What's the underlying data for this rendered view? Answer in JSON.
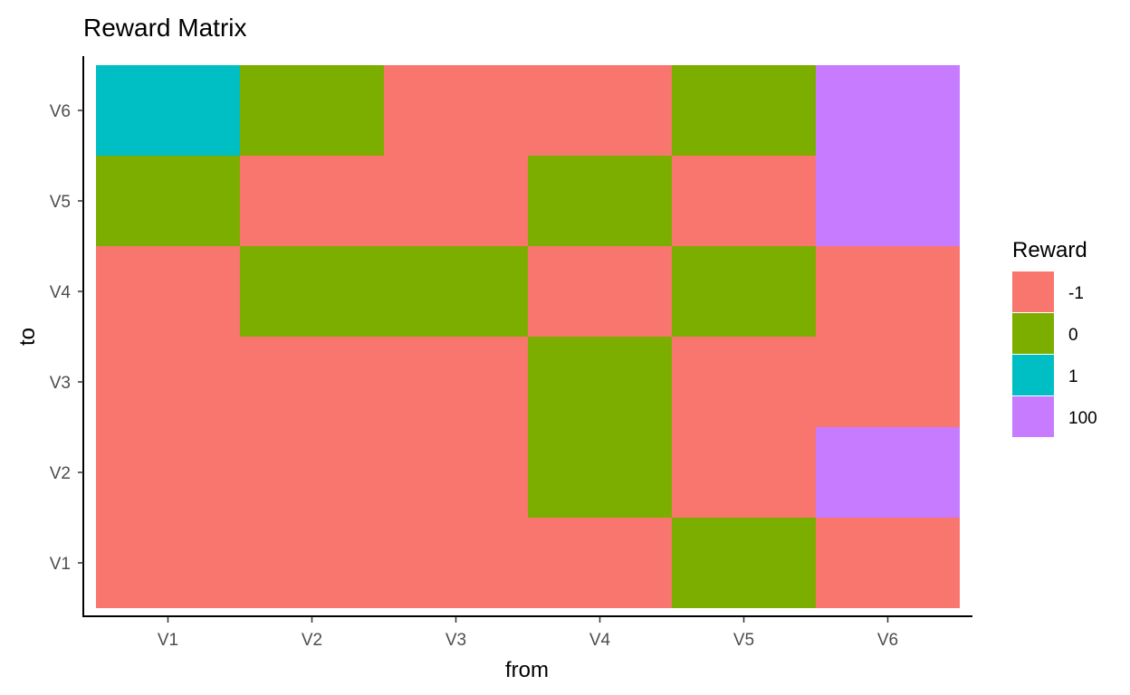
{
  "chart_data": {
    "type": "heatmap",
    "title": "Reward Matrix",
    "xlabel": "from",
    "ylabel": "to",
    "x_categories": [
      "V1",
      "V2",
      "V3",
      "V4",
      "V5",
      "V6"
    ],
    "y_categories": [
      "V1",
      "V2",
      "V3",
      "V4",
      "V5",
      "V6"
    ],
    "legend_title": "Reward",
    "legend": [
      {
        "label": "-1",
        "color": "#F8766D"
      },
      {
        "label": "0",
        "color": "#7CAE00"
      },
      {
        "label": "1",
        "color": "#00BFC4"
      },
      {
        "label": "100",
        "color": "#C77CFF"
      }
    ],
    "cells": [
      {
        "from": "V1",
        "to": "V1",
        "reward": "-1"
      },
      {
        "from": "V2",
        "to": "V1",
        "reward": "-1"
      },
      {
        "from": "V3",
        "to": "V1",
        "reward": "-1"
      },
      {
        "from": "V4",
        "to": "V1",
        "reward": "-1"
      },
      {
        "from": "V5",
        "to": "V1",
        "reward": "0"
      },
      {
        "from": "V6",
        "to": "V1",
        "reward": "-1"
      },
      {
        "from": "V1",
        "to": "V2",
        "reward": "-1"
      },
      {
        "from": "V2",
        "to": "V2",
        "reward": "-1"
      },
      {
        "from": "V3",
        "to": "V2",
        "reward": "-1"
      },
      {
        "from": "V4",
        "to": "V2",
        "reward": "0"
      },
      {
        "from": "V5",
        "to": "V2",
        "reward": "-1"
      },
      {
        "from": "V6",
        "to": "V2",
        "reward": "100"
      },
      {
        "from": "V1",
        "to": "V3",
        "reward": "-1"
      },
      {
        "from": "V2",
        "to": "V3",
        "reward": "-1"
      },
      {
        "from": "V3",
        "to": "V3",
        "reward": "-1"
      },
      {
        "from": "V4",
        "to": "V3",
        "reward": "0"
      },
      {
        "from": "V5",
        "to": "V3",
        "reward": "-1"
      },
      {
        "from": "V6",
        "to": "V3",
        "reward": "-1"
      },
      {
        "from": "V1",
        "to": "V4",
        "reward": "-1"
      },
      {
        "from": "V2",
        "to": "V4",
        "reward": "0"
      },
      {
        "from": "V3",
        "to": "V4",
        "reward": "0"
      },
      {
        "from": "V4",
        "to": "V4",
        "reward": "-1"
      },
      {
        "from": "V5",
        "to": "V4",
        "reward": "0"
      },
      {
        "from": "V6",
        "to": "V4",
        "reward": "-1"
      },
      {
        "from": "V1",
        "to": "V5",
        "reward": "0"
      },
      {
        "from": "V2",
        "to": "V5",
        "reward": "-1"
      },
      {
        "from": "V3",
        "to": "V5",
        "reward": "-1"
      },
      {
        "from": "V4",
        "to": "V5",
        "reward": "0"
      },
      {
        "from": "V5",
        "to": "V5",
        "reward": "-1"
      },
      {
        "from": "V6",
        "to": "V5",
        "reward": "100"
      },
      {
        "from": "V1",
        "to": "V6",
        "reward": "1"
      },
      {
        "from": "V2",
        "to": "V6",
        "reward": "0"
      },
      {
        "from": "V3",
        "to": "V6",
        "reward": "-1"
      },
      {
        "from": "V4",
        "to": "V6",
        "reward": "-1"
      },
      {
        "from": "V5",
        "to": "V6",
        "reward": "0"
      },
      {
        "from": "V6",
        "to": "V6",
        "reward": "100"
      }
    ],
    "grid": false,
    "legend_position": "right"
  }
}
